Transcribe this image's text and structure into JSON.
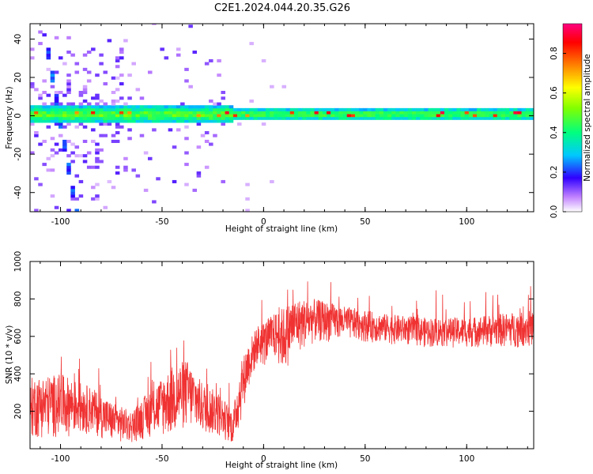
{
  "title": "C2E1.2024.044.20.35.G26",
  "chart_data": [
    {
      "type": "heatmap",
      "xlabel": "Height of straight line (km)",
      "ylabel": "Frequency (Hz)",
      "xlim": [
        -115,
        133
      ],
      "ylim": [
        -50,
        48
      ],
      "xticks": [
        -100,
        -50,
        0,
        50,
        100
      ],
      "xtick_labels": [
        "-100",
        "-50",
        "0",
        "50",
        "100"
      ],
      "yticks": [
        -40,
        -20,
        0,
        20,
        40
      ],
      "ytick_labels": [
        "-40",
        "-20",
        "0",
        "20",
        "40"
      ],
      "colorbar": {
        "label": "Normalized spectral amplitude",
        "range": [
          0,
          0.95
        ],
        "ticks": [
          0.0,
          0.2,
          0.4,
          0.6,
          0.8
        ],
        "tick_labels": [
          "0.0",
          "0.2",
          "0.4",
          "0.6",
          "0.8"
        ]
      },
      "features": {
        "carrier_band_center_hz": 0,
        "carrier_band_halfwidth_hz": 4,
        "diagonal_trace": {
          "x_start": -105,
          "f_start": 20,
          "x_end": -95,
          "f_end": -40
        }
      }
    },
    {
      "type": "line",
      "xlabel": "Height of straight line (km)",
      "ylabel": "SNR (10 * v/v)",
      "xlim": [
        -115,
        133
      ],
      "ylim": [
        0,
        1000
      ],
      "xticks": [
        -100,
        -50,
        0,
        50,
        100
      ],
      "xtick_labels": [
        "-100",
        "-50",
        "0",
        "50",
        "100"
      ],
      "yticks": [
        200,
        400,
        600,
        800,
        1000
      ],
      "ytick_labels": [
        "200",
        "400",
        "600",
        "800",
        "1000"
      ],
      "series": [
        {
          "color": "#f03232",
          "envelope": {
            "x": [
              -115,
              -100,
              -85,
              -75,
              -65,
              -55,
              -45,
              -38,
              -30,
              -22,
              -15,
              -12,
              -8,
              -3,
              0,
              5,
              10,
              15,
              25,
              40,
              60,
              80,
              100,
              115,
              133
            ],
            "low": [
              50,
              60,
              80,
              30,
              30,
              60,
              60,
              100,
              80,
              60,
              20,
              100,
              300,
              450,
              430,
              480,
              400,
              500,
              560,
              580,
              560,
              540,
              540,
              540,
              540
            ],
            "high": [
              380,
              400,
              330,
              250,
              200,
              330,
              440,
              480,
              350,
              300,
              200,
              420,
              560,
              660,
              680,
              720,
              760,
              800,
              800,
              760,
              720,
              700,
              700,
              720,
              740
            ]
          }
        }
      ]
    }
  ]
}
